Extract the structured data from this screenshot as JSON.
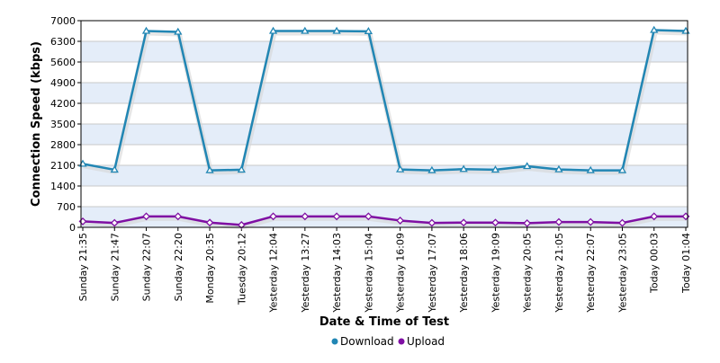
{
  "chart_data": {
    "type": "line",
    "xlabel": "Date & Time of Test",
    "ylabel": "Connection Speed (kbps)",
    "ylim": [
      0,
      7000
    ],
    "yticks": [
      0,
      700,
      1400,
      2100,
      2800,
      3500,
      4200,
      4900,
      5600,
      6300,
      7000
    ],
    "grid": "horizontal alternating bands",
    "legend_position": "bottom-center",
    "categories": [
      "Sunday 21:35",
      "Sunday 21:47",
      "Sunday 22:07",
      "Sunday 22:20",
      "Monday 20:35",
      "Tuesday 20:12",
      "Yesterday 12:04",
      "Yesterday 13:27",
      "Yesterday 14:03",
      "Yesterday 15:04",
      "Yesterday 16:09",
      "Yesterday 17:07",
      "Yesterday 18:06",
      "Yesterday 19:09",
      "Yesterday 20:05",
      "Yesterday 21:05",
      "Yesterday 22:07",
      "Yesterday 23:05",
      "Today 00:03",
      "Today 01:04"
    ],
    "series": [
      {
        "name": "Download",
        "color": "#2186b4",
        "values": [
          2150,
          1950,
          6650,
          6620,
          1930,
          1950,
          6650,
          6650,
          6650,
          6640,
          1960,
          1930,
          1970,
          1950,
          2070,
          1960,
          1930,
          1930,
          6680,
          6650
        ]
      },
      {
        "name": "Upload",
        "color": "#7f0fa3",
        "values": [
          200,
          150,
          370,
          370,
          160,
          80,
          370,
          370,
          370,
          370,
          230,
          150,
          160,
          160,
          140,
          180,
          180,
          150,
          370,
          370
        ]
      }
    ]
  }
}
